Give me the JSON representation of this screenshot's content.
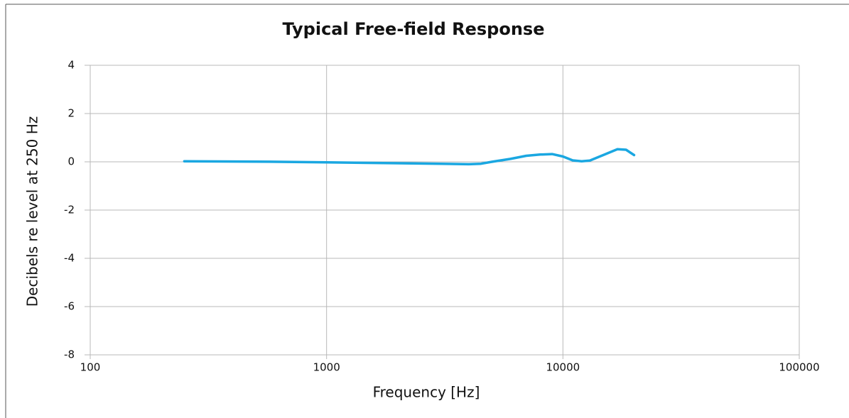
{
  "chart_data": {
    "type": "line",
    "title": "Typical Free-field Response",
    "x_label": "Frequency [Hz]",
    "y_label": "Decibels re level at 250 Hz",
    "x": [
      250,
      500,
      1000,
      2000,
      3000,
      4000,
      4500,
      5000,
      6000,
      7000,
      8000,
      9000,
      10000,
      11000,
      12000,
      13000,
      15000,
      17000,
      18500,
      20000
    ],
    "series": [
      {
        "name": "Free-field response",
        "color": "#1aa7e1",
        "values": [
          0.02,
          0.01,
          -0.02,
          -0.06,
          -0.08,
          -0.1,
          -0.08,
          0.0,
          0.12,
          0.25,
          0.3,
          0.32,
          0.22,
          0.06,
          0.02,
          0.05,
          0.3,
          0.52,
          0.5,
          0.28
        ]
      }
    ],
    "xlog": true,
    "xlim": [
      100,
      100000
    ],
    "xticks": [
      100,
      1000,
      10000,
      100000
    ],
    "ylim": [
      -8,
      4
    ],
    "yticks": [
      4,
      2,
      0,
      -2,
      -4,
      -6,
      -8
    ],
    "grid": true
  }
}
